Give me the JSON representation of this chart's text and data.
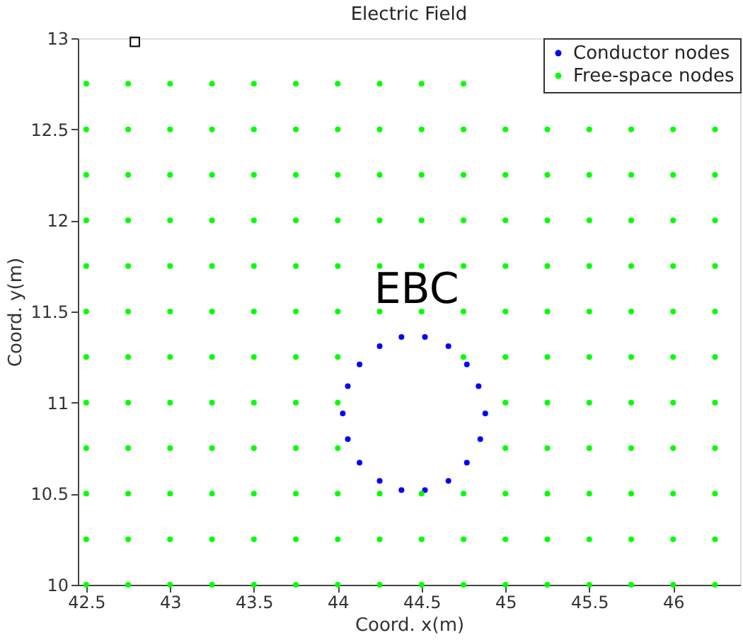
{
  "chart_data": {
    "type": "scatter",
    "title": "Electric Field",
    "xlabel": "Coord. x(m)",
    "ylabel": "Coord. y(m)",
    "xlim": [
      42.45,
      46.4
    ],
    "ylim": [
      10,
      13
    ],
    "xticks": [
      42.5,
      43,
      43.5,
      44,
      44.5,
      45,
      45.5,
      46
    ],
    "yticks": [
      10,
      10.5,
      11,
      11.5,
      12,
      12.5,
      13
    ],
    "grid": false,
    "legend": "top right",
    "marker": "circle",
    "annotations": [
      {
        "text": "EBC",
        "x": 44.47,
        "y": 11.5
      }
    ],
    "series": [
      {
        "name": "Conductor nodes",
        "color": "#0000ff",
        "x": [
          44.38,
          44.52,
          44.66,
          44.77,
          44.84,
          44.88,
          44.85,
          44.77,
          44.66,
          44.52,
          44.38,
          44.25,
          44.13,
          44.06,
          44.03,
          44.06,
          44.13,
          44.25
        ],
        "values": [
          11.36,
          11.36,
          11.31,
          11.21,
          11.09,
          10.94,
          10.8,
          10.67,
          10.57,
          10.52,
          10.52,
          10.57,
          10.67,
          10.8,
          10.94,
          11.09,
          11.21,
          11.31
        ]
      },
      {
        "name": "Free-space nodes",
        "color": "#00ff00",
        "x": [
          42.5,
          42.75,
          43,
          43.25,
          43.5,
          43.75,
          44,
          44.25,
          44.5,
          44.75,
          45,
          45.25,
          45.5,
          45.75,
          46,
          46.25,
          42.5,
          42.75,
          43,
          43.25,
          43.5,
          43.75,
          44,
          44.25,
          44.5,
          44.75,
          45,
          45.25,
          45.5,
          45.75,
          46,
          46.25,
          42.5,
          42.75,
          43,
          43.25,
          43.5,
          43.75,
          44,
          44.25,
          44.5,
          44.75,
          45,
          45.25,
          45.5,
          45.75,
          46,
          46.25,
          42.5,
          42.75,
          43,
          43.25,
          43.5,
          43.75,
          44,
          45,
          45.25,
          45.5,
          45.75,
          46,
          46.25,
          42.5,
          42.75,
          43,
          43.25,
          43.5,
          43.75,
          44,
          45,
          45.25,
          45.5,
          45.75,
          46,
          46.25,
          42.5,
          42.75,
          43,
          43.25,
          43.5,
          43.75,
          44,
          44.75,
          45,
          45.25,
          45.5,
          45.75,
          46,
          46.25,
          42.5,
          42.75,
          43,
          43.25,
          43.5,
          43.75,
          44,
          44.25,
          44.5,
          44.75,
          45,
          45.25,
          45.5,
          45.75,
          46,
          46.25,
          42.5,
          42.75,
          43,
          43.25,
          43.5,
          43.75,
          44,
          44.25,
          44.5,
          44.75,
          45,
          45.25,
          45.5,
          45.75,
          46,
          46.25,
          42.5,
          42.75,
          43,
          43.25,
          43.5,
          43.75,
          44,
          44.25,
          44.5,
          44.75,
          45,
          45.25,
          45.5,
          45.75,
          46,
          46.25,
          42.5,
          42.75,
          43,
          43.25,
          43.5,
          43.75,
          44,
          44.25,
          44.5,
          44.75,
          45,
          45.25,
          45.5,
          45.75,
          46,
          46.25,
          42.5,
          42.75,
          43,
          43.25,
          43.5,
          43.75,
          44,
          44.25,
          44.5,
          44.75,
          45,
          45.25,
          45.5,
          45.75,
          46,
          46.25,
          42.5,
          42.75,
          43,
          43.25,
          43.5,
          43.75,
          44,
          44.25,
          44.5,
          44.75
        ],
        "values": [
          10,
          10,
          10,
          10,
          10,
          10,
          10,
          10,
          10,
          10,
          10,
          10,
          10,
          10,
          10,
          10,
          10.25,
          10.25,
          10.25,
          10.25,
          10.25,
          10.25,
          10.25,
          10.25,
          10.25,
          10.25,
          10.25,
          10.25,
          10.25,
          10.25,
          10.25,
          10.25,
          10.5,
          10.5,
          10.5,
          10.5,
          10.5,
          10.5,
          10.5,
          10.5,
          10.5,
          10.5,
          10.5,
          10.5,
          10.5,
          10.5,
          10.5,
          10.5,
          10.75,
          10.75,
          10.75,
          10.75,
          10.75,
          10.75,
          10.75,
          10.75,
          10.75,
          10.75,
          10.75,
          10.75,
          10.75,
          11,
          11,
          11,
          11,
          11,
          11,
          11,
          11,
          11,
          11,
          11,
          11,
          11,
          11.25,
          11.25,
          11.25,
          11.25,
          11.25,
          11.25,
          11.25,
          11.25,
          11.25,
          11.25,
          11.25,
          11.25,
          11.25,
          11.25,
          11.5,
          11.5,
          11.5,
          11.5,
          11.5,
          11.5,
          11.5,
          11.5,
          11.5,
          11.5,
          11.5,
          11.5,
          11.5,
          11.5,
          11.5,
          11.5,
          11.75,
          11.75,
          11.75,
          11.75,
          11.75,
          11.75,
          11.75,
          11.75,
          11.75,
          11.75,
          11.75,
          11.75,
          11.75,
          11.75,
          11.75,
          11.75,
          12,
          12,
          12,
          12,
          12,
          12,
          12,
          12,
          12,
          12,
          12,
          12,
          12,
          12,
          12,
          12,
          12.25,
          12.25,
          12.25,
          12.25,
          12.25,
          12.25,
          12.25,
          12.25,
          12.25,
          12.25,
          12.25,
          12.25,
          12.25,
          12.25,
          12.25,
          12.25,
          12.5,
          12.5,
          12.5,
          12.5,
          12.5,
          12.5,
          12.5,
          12.5,
          12.5,
          12.5,
          12.5,
          12.5,
          12.5,
          12.5,
          12.5,
          12.5,
          12.75,
          12.75,
          12.75,
          12.75,
          12.75,
          12.75,
          12.75,
          12.75,
          12.75,
          12.75
        ]
      },
      {
        "color": "#000000",
        "marker": "square",
        "x": [
          42.79
        ],
        "values": [
          12.98
        ]
      }
    ]
  }
}
